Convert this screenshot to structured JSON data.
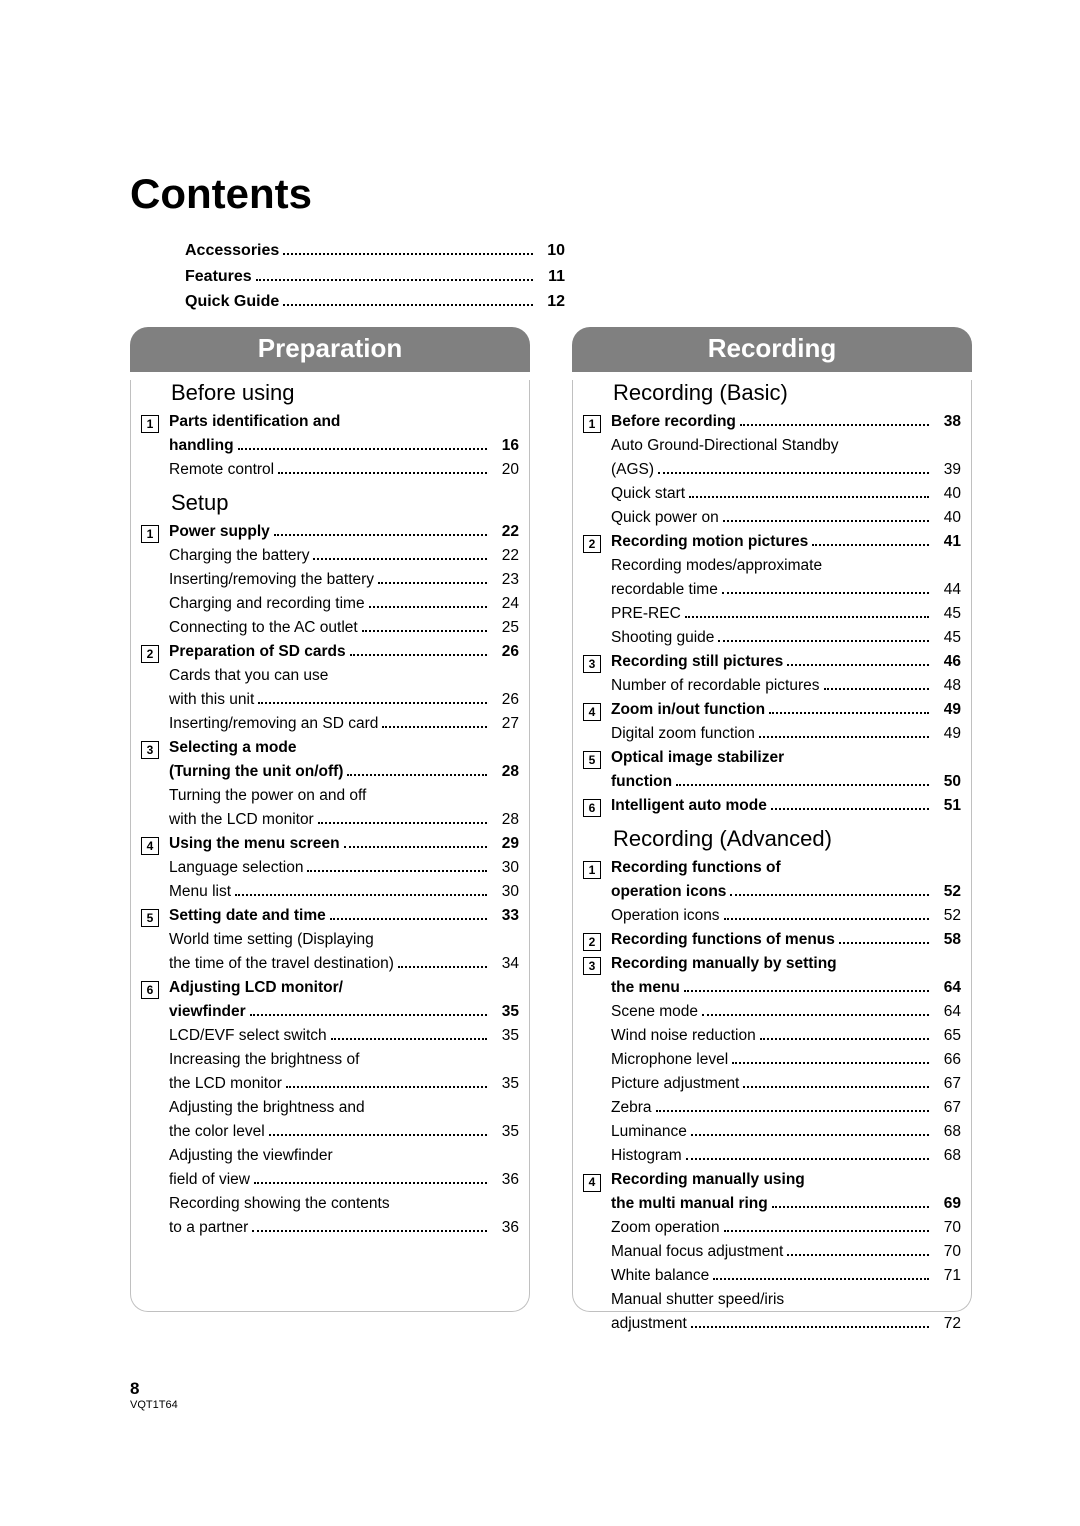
{
  "colors": {
    "tab_bg": "#808080",
    "tab_fg": "#ffffff",
    "text": "#000000",
    "page_bg": "#ffffff",
    "border": "#c0c0c0"
  },
  "title": "Contents",
  "top_entries": [
    {
      "label": "Accessories",
      "page": "10",
      "bold": true
    },
    {
      "label": "Features",
      "page": "11",
      "bold": true
    },
    {
      "label": "Quick Guide",
      "page": "12",
      "bold": true
    }
  ],
  "left": {
    "tab": "Preparation",
    "groups": [
      {
        "heading": "Before using",
        "items": [
          {
            "num": "1",
            "label": "Parts identification and\nhandling",
            "page": "16",
            "bold": true
          },
          {
            "sub": true,
            "label": "Remote control",
            "page": "20"
          }
        ]
      },
      {
        "heading": "Setup",
        "items": [
          {
            "num": "1",
            "label": "Power supply",
            "page": "22",
            "bold": true
          },
          {
            "sub": true,
            "label": "Charging the battery",
            "page": "22"
          },
          {
            "sub": true,
            "label": "Inserting/removing the battery",
            "page": "23"
          },
          {
            "sub": true,
            "label": "Charging and recording time",
            "page": "24"
          },
          {
            "sub": true,
            "label": "Connecting to the AC outlet",
            "page": "25"
          },
          {
            "num": "2",
            "label": "Preparation of SD cards",
            "page": "26",
            "bold": true
          },
          {
            "sub": true,
            "label": "Cards that you can use\nwith this unit",
            "page": "26"
          },
          {
            "sub": true,
            "label": "Inserting/removing an SD card",
            "page": "27"
          },
          {
            "num": "3",
            "label": "Selecting a mode\n(Turning the unit on/off)",
            "page": "28",
            "bold": true
          },
          {
            "sub": true,
            "label": "Turning the power on and off\nwith the LCD monitor",
            "page": "28"
          },
          {
            "num": "4",
            "label": "Using the menu screen",
            "page": "29",
            "bold": true
          },
          {
            "sub": true,
            "label": "Language selection",
            "page": "30"
          },
          {
            "sub": true,
            "label": "Menu list",
            "page": "30"
          },
          {
            "num": "5",
            "label": "Setting date and time",
            "page": "33",
            "bold": true
          },
          {
            "sub": true,
            "label": "World time setting (Displaying\nthe time of the travel destination)",
            "page": "34"
          },
          {
            "num": "6",
            "label": "Adjusting LCD monitor/\nviewfinder",
            "page": "35",
            "bold": true
          },
          {
            "sub": true,
            "label": "LCD/EVF select switch",
            "page": "35"
          },
          {
            "sub": true,
            "label": "Increasing the brightness of\nthe LCD monitor",
            "page": "35"
          },
          {
            "sub": true,
            "label": "Adjusting the brightness and\nthe color level",
            "page": "35"
          },
          {
            "sub": true,
            "label": "Adjusting the viewfinder\nfield of view",
            "page": "36"
          },
          {
            "sub": true,
            "label": "Recording showing the contents\nto a partner",
            "page": "36"
          }
        ]
      }
    ]
  },
  "right": {
    "tab": "Recording",
    "groups": [
      {
        "heading": "Recording (Basic)",
        "items": [
          {
            "num": "1",
            "label": "Before recording",
            "page": "38",
            "bold": true
          },
          {
            "sub": true,
            "label": "Auto Ground-Directional Standby\n(AGS)",
            "page": "39"
          },
          {
            "sub": true,
            "label": "Quick start",
            "page": "40"
          },
          {
            "sub": true,
            "label": "Quick power on",
            "page": "40"
          },
          {
            "num": "2",
            "label": "Recording motion pictures",
            "page": "41",
            "bold": true
          },
          {
            "sub": true,
            "label": "Recording modes/approximate\nrecordable time",
            "page": "44"
          },
          {
            "sub": true,
            "label": "PRE-REC",
            "page": "45"
          },
          {
            "sub": true,
            "label": "Shooting guide",
            "page": "45"
          },
          {
            "num": "3",
            "label": "Recording still pictures",
            "page": "46",
            "bold": true
          },
          {
            "sub": true,
            "label": "Number of recordable pictures",
            "page": "48"
          },
          {
            "num": "4",
            "label": "Zoom in/out function",
            "page": "49",
            "bold": true
          },
          {
            "sub": true,
            "label": "Digital zoom function",
            "page": "49"
          },
          {
            "num": "5",
            "label": "Optical image stabilizer\nfunction",
            "page": "50",
            "bold": true
          },
          {
            "num": "6",
            "label": "Intelligent auto mode",
            "page": "51",
            "bold": true
          }
        ]
      },
      {
        "heading": "Recording (Advanced)",
        "items": [
          {
            "num": "1",
            "label": "Recording functions of\noperation icons",
            "page": "52",
            "bold": true
          },
          {
            "sub": true,
            "label": "Operation icons",
            "page": "52"
          },
          {
            "num": "2",
            "label": "Recording functions of menus",
            "page": "58",
            "bold": true
          },
          {
            "num": "3",
            "label": "Recording manually by setting\nthe menu",
            "page": "64",
            "bold": true
          },
          {
            "sub": true,
            "label": "Scene mode",
            "page": "64"
          },
          {
            "sub": true,
            "label": "Wind noise reduction",
            "page": "65"
          },
          {
            "sub": true,
            "label": "Microphone level",
            "page": "66"
          },
          {
            "sub": true,
            "label": "Picture adjustment",
            "page": "67"
          },
          {
            "sub": true,
            "label": "Zebra",
            "page": "67"
          },
          {
            "sub": true,
            "label": "Luminance",
            "page": "68"
          },
          {
            "sub": true,
            "label": "Histogram",
            "page": "68"
          },
          {
            "num": "4",
            "label": "Recording manually using\nthe multi manual ring",
            "page": "69",
            "bold": true
          },
          {
            "sub": true,
            "label": "Zoom operation",
            "page": "70"
          },
          {
            "sub": true,
            "label": "Manual focus adjustment",
            "page": "70"
          },
          {
            "sub": true,
            "label": "White balance",
            "page": "71"
          },
          {
            "sub": true,
            "label": "Manual shutter speed/iris\nadjustment",
            "page": "72"
          }
        ]
      }
    ]
  },
  "footer": {
    "page_number": "8",
    "doc_code": "VQT1T64"
  }
}
